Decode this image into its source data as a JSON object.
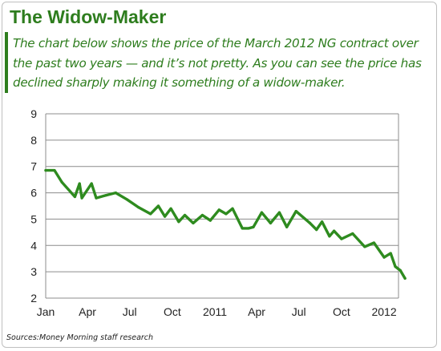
{
  "header": {
    "title": "The Widow-Maker",
    "subtitle": "The chart below shows the price of the March 2012 NG contract over the past two years — and it’s not pretty. As you can see the price has declined sharply making it something of a widow-maker."
  },
  "footer": {
    "source_label": "Sources:",
    "source_text": "Money Morning staff research"
  },
  "colors": {
    "accent": "#2e7d1e",
    "line": "#2e8b1f",
    "grid": "#8c8c8c"
  },
  "chart_data": {
    "type": "line",
    "title": "",
    "xlabel": "",
    "ylabel": "",
    "ylim": [
      2,
      9
    ],
    "yticks": [
      2,
      3,
      4,
      5,
      6,
      7,
      8,
      9
    ],
    "grid": true,
    "xlim": [
      "2010-01",
      "2012-02"
    ],
    "xtick_labels": [
      {
        "label": "Jan",
        "x": "2010-01"
      },
      {
        "label": "Apr",
        "x": "2010-04"
      },
      {
        "label": "Jul",
        "x": "2010-07"
      },
      {
        "label": "Oct",
        "x": "2010-10"
      },
      {
        "label": "2011",
        "x": "2011-01"
      },
      {
        "label": "Apr",
        "x": "2011-04"
      },
      {
        "label": "Jul",
        "x": "2011-07"
      },
      {
        "label": "Oct",
        "x": "2011-10"
      },
      {
        "label": "2012",
        "x": "2012-01"
      }
    ],
    "series": [
      {
        "values": [
          {
            "x": "2010-01-01",
            "y": 6.85
          },
          {
            "x": "2010-01-20",
            "y": 6.85
          },
          {
            "x": "2010-02-05",
            "y": 6.4
          },
          {
            "x": "2010-03-05",
            "y": 5.85
          },
          {
            "x": "2010-03-15",
            "y": 6.35
          },
          {
            "x": "2010-03-20",
            "y": 5.8
          },
          {
            "x": "2010-04-10",
            "y": 6.35
          },
          {
            "x": "2010-04-20",
            "y": 5.8
          },
          {
            "x": "2010-05-10",
            "y": 5.9
          },
          {
            "x": "2010-06-01",
            "y": 6.0
          },
          {
            "x": "2010-06-25",
            "y": 5.75
          },
          {
            "x": "2010-07-20",
            "y": 5.45
          },
          {
            "x": "2010-08-15",
            "y": 5.2
          },
          {
            "x": "2010-09-01",
            "y": 5.5
          },
          {
            "x": "2010-09-15",
            "y": 5.1
          },
          {
            "x": "2010-09-28",
            "y": 5.4
          },
          {
            "x": "2010-10-15",
            "y": 4.9
          },
          {
            "x": "2010-10-28",
            "y": 5.15
          },
          {
            "x": "2010-11-15",
            "y": 4.85
          },
          {
            "x": "2010-12-05",
            "y": 5.15
          },
          {
            "x": "2010-12-22",
            "y": 4.95
          },
          {
            "x": "2011-01-10",
            "y": 5.35
          },
          {
            "x": "2011-01-25",
            "y": 5.2
          },
          {
            "x": "2011-02-08",
            "y": 5.4
          },
          {
            "x": "2011-03-01",
            "y": 4.65
          },
          {
            "x": "2011-03-15",
            "y": 4.65
          },
          {
            "x": "2011-03-25",
            "y": 4.7
          },
          {
            "x": "2011-04-12",
            "y": 5.25
          },
          {
            "x": "2011-05-01",
            "y": 4.85
          },
          {
            "x": "2011-05-20",
            "y": 5.25
          },
          {
            "x": "2011-06-05",
            "y": 4.7
          },
          {
            "x": "2011-06-25",
            "y": 5.3
          },
          {
            "x": "2011-07-25",
            "y": 4.85
          },
          {
            "x": "2011-08-08",
            "y": 4.6
          },
          {
            "x": "2011-08-20",
            "y": 4.9
          },
          {
            "x": "2011-09-05",
            "y": 4.35
          },
          {
            "x": "2011-09-15",
            "y": 4.55
          },
          {
            "x": "2011-10-01",
            "y": 4.25
          },
          {
            "x": "2011-10-25",
            "y": 4.45
          },
          {
            "x": "2011-11-20",
            "y": 3.95
          },
          {
            "x": "2011-12-10",
            "y": 4.1
          },
          {
            "x": "2012-01-01",
            "y": 3.55
          },
          {
            "x": "2012-01-15",
            "y": 3.7
          },
          {
            "x": "2012-01-25",
            "y": 3.2
          },
          {
            "x": "2012-02-05",
            "y": 3.05
          },
          {
            "x": "2012-02-15",
            "y": 2.75
          }
        ]
      }
    ]
  }
}
